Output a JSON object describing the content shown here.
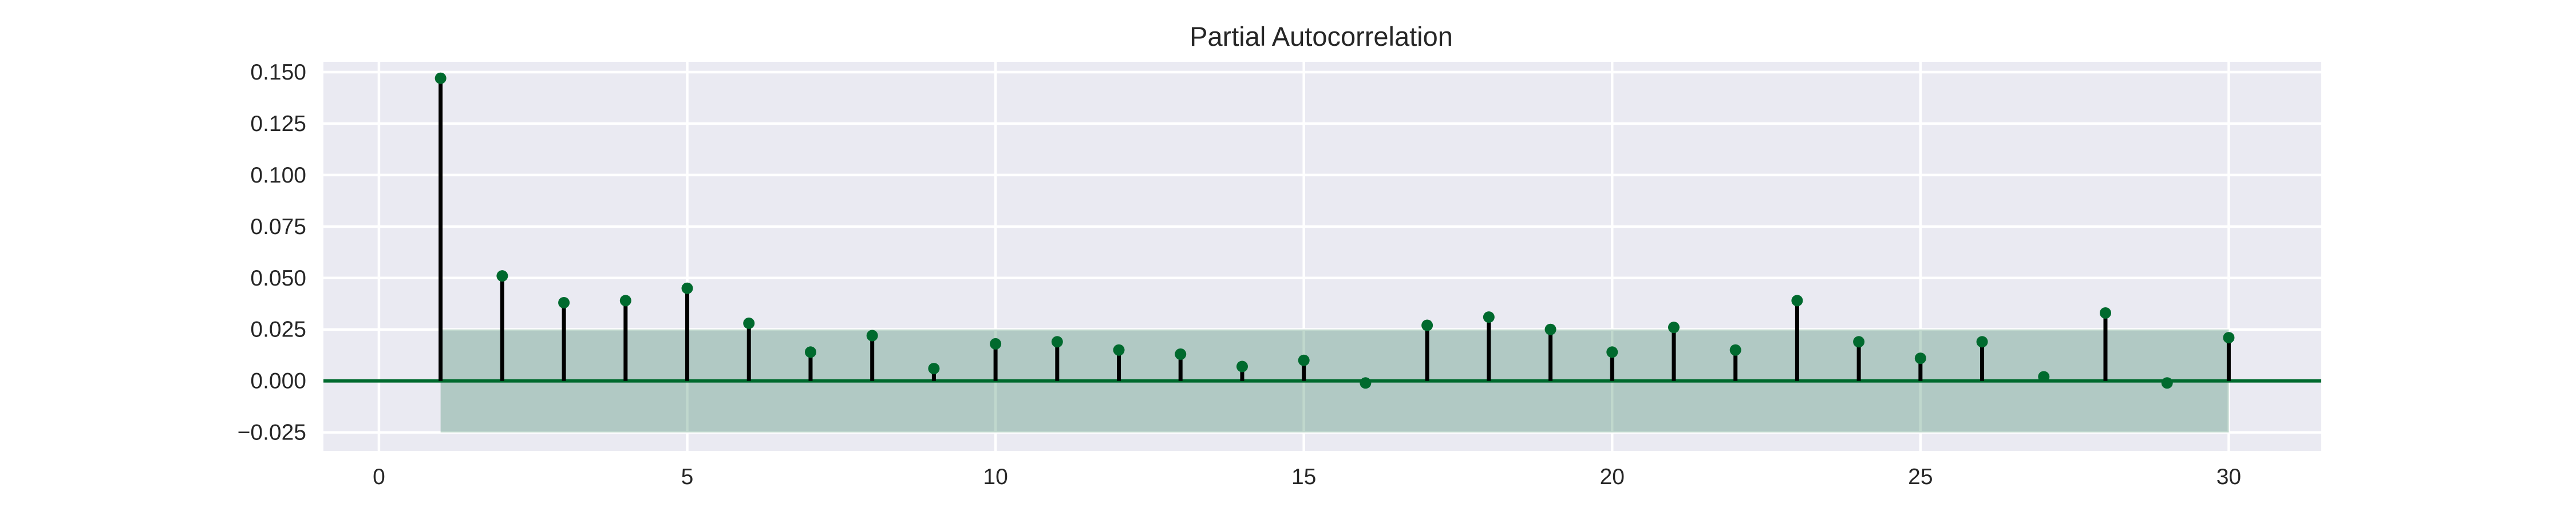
{
  "chart_data": {
    "type": "stem",
    "title": "Partial Autocorrelation",
    "xlabel": "",
    "ylabel": "",
    "xlim": [
      -0.9,
      31.5
    ],
    "ylim": [
      -0.034,
      0.155
    ],
    "x_ticks": [
      0,
      5,
      10,
      15,
      20,
      25,
      30
    ],
    "x_tick_labels": [
      "0",
      "5",
      "10",
      "15",
      "20",
      "25",
      "30"
    ],
    "y_ticks": [
      -0.025,
      0.0,
      0.025,
      0.05,
      0.075,
      0.1,
      0.125,
      0.15
    ],
    "y_tick_labels": [
      "−0.025",
      "0.000",
      "0.025",
      "0.050",
      "0.075",
      "0.100",
      "0.125",
      "0.150"
    ],
    "grid": true,
    "confidence_band": {
      "x_range": [
        1,
        30
      ],
      "lower": -0.025,
      "upper": 0.025
    },
    "series": [
      {
        "x": [
          1,
          2,
          3,
          4,
          5,
          6,
          7,
          8,
          9,
          10,
          11,
          12,
          13,
          14,
          15,
          16,
          17,
          18,
          19,
          20,
          21,
          22,
          23,
          24,
          25,
          26,
          27,
          28,
          29,
          30
        ],
        "values": [
          0.147,
          0.051,
          0.038,
          0.039,
          0.045,
          0.028,
          0.014,
          0.022,
          0.006,
          0.018,
          0.019,
          0.015,
          0.013,
          0.007,
          0.01,
          -0.001,
          0.027,
          0.031,
          0.025,
          0.014,
          0.026,
          0.015,
          0.039,
          0.019,
          0.011,
          0.019,
          0.002,
          0.033,
          -0.001,
          0.021
        ]
      }
    ]
  },
  "colors": {
    "background": "#ffffff",
    "plot_background": "#eaeaf2",
    "grid": "#ffffff",
    "stem": "#000000",
    "marker": "#006a2e",
    "zero_line": "#006a2e",
    "confidence_band": "#2e7d5b"
  }
}
